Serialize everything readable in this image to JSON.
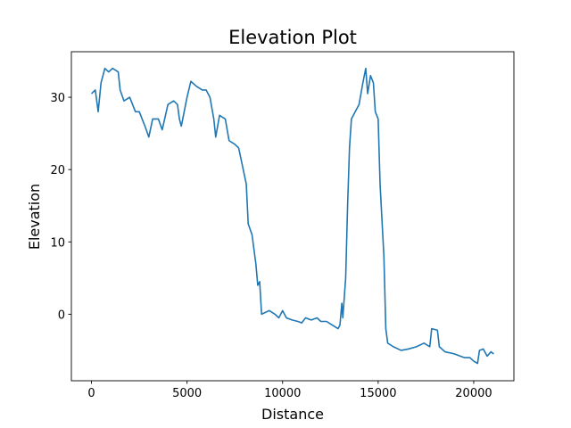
{
  "chart_data": {
    "type": "line",
    "title": "Elevation Plot",
    "x_label": "Distance",
    "y_label": "Elevation",
    "color": "#1f77b4",
    "x": [
      0,
      200,
      350,
      500,
      700,
      900,
      1100,
      1400,
      1500,
      1700,
      2000,
      2300,
      2500,
      2800,
      3000,
      3200,
      3500,
      3700,
      4000,
      4300,
      4500,
      4600,
      4700,
      5000,
      5200,
      5500,
      5800,
      6000,
      6200,
      6400,
      6500,
      6700,
      7000,
      7200,
      7500,
      7700,
      7900,
      8100,
      8200,
      8400,
      8600,
      8700,
      8800,
      8900,
      9300,
      9600,
      9800,
      10000,
      10200,
      10500,
      10800,
      11000,
      11200,
      11500,
      11800,
      12000,
      12300,
      12600,
      12900,
      13000,
      13100,
      13150,
      13300,
      13400,
      13500,
      13600,
      13800,
      14000,
      14200,
      14350,
      14450,
      14600,
      14750,
      14850,
      15000,
      15100,
      15300,
      15400,
      15500,
      15800,
      16200,
      16600,
      17000,
      17400,
      17700,
      17800,
      18100,
      18200,
      18500,
      19000,
      19500,
      19800,
      20000,
      20200,
      20300,
      20500,
      20700,
      20900,
      21050
    ],
    "values": [
      30.5,
      31,
      28,
      32,
      34,
      33.5,
      34,
      33.5,
      31,
      29.5,
      30,
      28,
      28,
      26,
      24.5,
      27,
      27,
      25.5,
      29,
      29.5,
      29,
      27,
      26,
      30,
      32.2,
      31.5,
      31,
      31,
      30,
      27,
      24.5,
      27.5,
      27,
      24,
      23.5,
      23,
      20.5,
      18,
      12.5,
      11,
      7,
      4,
      4.5,
      0,
      0.5,
      0,
      -0.5,
      0.5,
      -0.5,
      -0.8,
      -1,
      -1.2,
      -0.5,
      -0.8,
      -0.5,
      -1,
      -1,
      -1.5,
      -2,
      -1.5,
      1.5,
      -0.5,
      5,
      15,
      23,
      27,
      28,
      29,
      32,
      34,
      30.5,
      33,
      32,
      28,
      27,
      18,
      8,
      -2,
      -4,
      -4.5,
      -5,
      -4.8,
      -4.5,
      -4,
      -4.5,
      -2,
      -2.2,
      -4.5,
      -5.2,
      -5.5,
      -6,
      -6,
      -6.5,
      -6.8,
      -5,
      -4.8,
      -5.8,
      -5.2,
      -5.5
    ],
    "xlim": [
      -1052,
      22102
    ],
    "xticks": [
      0,
      5000,
      10000,
      15000,
      20000
    ],
    "ylim": [
      -9.2,
      36.3
    ],
    "yticks": [
      0,
      10,
      20,
      30
    ]
  }
}
